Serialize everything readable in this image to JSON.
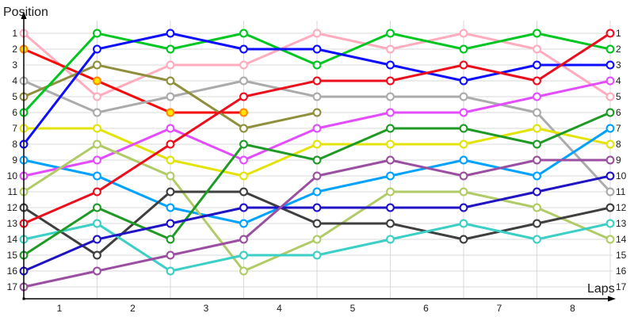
{
  "chart_data": {
    "type": "line",
    "subtype": "position-bump-chart",
    "y_axis_title": "Position",
    "x_axis_title": "Laps",
    "y_ticks": [
      "1",
      "2",
      "3",
      "4",
      "5",
      "6",
      "7",
      "8",
      "9",
      "10",
      "11",
      "12",
      "13",
      "14",
      "15",
      "16",
      "17"
    ],
    "y_ticks_shown_both_sides": true,
    "x_ticks": [
      "1",
      "2",
      "3",
      "4",
      "5",
      "6",
      "7",
      "8"
    ],
    "ylim": [
      1,
      17
    ],
    "y_inverted": true,
    "grid": "both",
    "columns": 9,
    "note": "x tick labels sit between data columns; positions are null where a series has no marker (retired)",
    "grid_color": "#d9d9d9",
    "axis_color": "#000000",
    "marker_fill": "#ffffff",
    "series": [
      {
        "name": "pink",
        "color": "#ffacbe",
        "positions": [
          1,
          5,
          3,
          3,
          1,
          2,
          1,
          2,
          5
        ]
      },
      {
        "name": "red",
        "color": "#f50a0a",
        "marker_fill": "#ffe600",
        "marker_stroke": "#ff8a00",
        "positions": [
          2,
          4,
          6,
          6,
          null,
          null,
          null,
          null,
          null
        ]
      },
      {
        "name": "gray",
        "color": "#ababab",
        "positions": [
          4,
          6,
          5,
          4,
          5,
          5,
          5,
          6,
          11
        ]
      },
      {
        "name": "olive",
        "color": "#8f8f3d",
        "positions": [
          5,
          3,
          4,
          7,
          6,
          null,
          null,
          null,
          null
        ]
      },
      {
        "name": "green",
        "color": "#00c621",
        "positions": [
          6,
          1,
          2,
          1,
          3,
          1,
          2,
          1,
          2
        ]
      },
      {
        "name": "yellow",
        "color": "#e3e30a",
        "positions": [
          7,
          7,
          9,
          10,
          8,
          8,
          8,
          7,
          8
        ]
      },
      {
        "name": "blue",
        "color": "#0d0dff",
        "positions": [
          8,
          2,
          1,
          2,
          2,
          3,
          4,
          3,
          3
        ]
      },
      {
        "name": "sky-blue",
        "color": "#00a2ff",
        "positions": [
          9,
          10,
          12,
          13,
          11,
          10,
          9,
          10,
          7
        ]
      },
      {
        "name": "violet",
        "color": "#e34dff",
        "positions": [
          10,
          9,
          7,
          9,
          7,
          6,
          6,
          5,
          4
        ]
      },
      {
        "name": "yellow-green",
        "color": "#b1cb66",
        "positions": [
          11,
          8,
          10,
          16,
          14,
          11,
          11,
          12,
          14
        ]
      },
      {
        "name": "dark-gray",
        "color": "#3f3f3f",
        "positions": [
          12,
          15,
          11,
          11,
          13,
          13,
          14,
          13,
          12
        ]
      },
      {
        "name": "crimson",
        "color": "#eb0f1e",
        "positions": [
          13,
          11,
          8,
          5,
          4,
          4,
          3,
          4,
          1
        ]
      },
      {
        "name": "turquoise",
        "color": "#3ccfc5",
        "positions": [
          14,
          13,
          16,
          15,
          15,
          14,
          13,
          14,
          13
        ]
      },
      {
        "name": "forest-green",
        "color": "#209a26",
        "positions": [
          15,
          12,
          14,
          8,
          9,
          7,
          7,
          8,
          6
        ]
      },
      {
        "name": "navy",
        "color": "#2013c4",
        "positions": [
          16,
          14,
          13,
          12,
          12,
          12,
          12,
          11,
          10
        ]
      },
      {
        "name": "purple",
        "color": "#9a4fa0",
        "positions": [
          17,
          16,
          15,
          14,
          10,
          9,
          10,
          9,
          9
        ]
      }
    ]
  }
}
